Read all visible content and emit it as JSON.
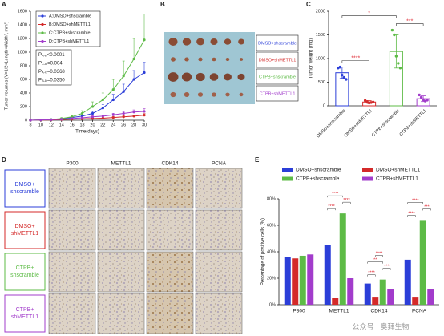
{
  "panel_labels": [
    "A",
    "B",
    "C",
    "D",
    "E"
  ],
  "chart_data": [
    {
      "type": "line",
      "ylabel": "Tumor volumes (V=1/2×Length×Width², mm³)",
      "xlabel": "Time(days)",
      "x": [
        8,
        10,
        12,
        14,
        16,
        18,
        20,
        22,
        24,
        26,
        28,
        30
      ],
      "xlim": [
        8,
        30
      ],
      "xticks": [
        8,
        10,
        12,
        14,
        16,
        18,
        20,
        22,
        24,
        26,
        28,
        30
      ],
      "ylim": [
        0,
        1600
      ],
      "yticks": [
        0,
        200,
        400,
        600,
        800,
        1000,
        1200,
        1400,
        1600
      ],
      "series": [
        {
          "name": "A:DMSO+shscramble",
          "color": "#2b3ed8",
          "values": [
            0,
            5,
            10,
            20,
            40,
            60,
            100,
            180,
            300,
            420,
            600,
            700
          ],
          "errors": [
            0,
            2,
            4,
            8,
            12,
            20,
            30,
            50,
            80,
            110,
            130,
            150
          ]
        },
        {
          "name": "B:DMSO+shMETTL1",
          "color": "#d42a2a",
          "values": [
            0,
            3,
            5,
            10,
            15,
            20,
            25,
            30,
            40,
            50,
            60,
            75
          ],
          "errors": [
            0,
            1,
            2,
            3,
            5,
            6,
            8,
            10,
            12,
            15,
            18,
            22
          ]
        },
        {
          "name": "C:CTPB+shscramble",
          "color": "#5dbb46",
          "values": [
            0,
            5,
            10,
            25,
            50,
            100,
            200,
            300,
            450,
            650,
            900,
            1180
          ],
          "errors": [
            0,
            3,
            5,
            10,
            20,
            40,
            70,
            100,
            150,
            220,
            300,
            380
          ]
        },
        {
          "name": "D:CTPB+shMETTL1",
          "color": "#a23ccb",
          "values": [
            0,
            4,
            8,
            15,
            25,
            35,
            50,
            60,
            80,
            100,
            120,
            130
          ],
          "errors": [
            0,
            2,
            3,
            5,
            8,
            10,
            14,
            18,
            22,
            28,
            32,
            40
          ]
        }
      ],
      "annotations": [
        {
          "p": "P",
          "sub": "A-B",
          "text": "<0.0001"
        },
        {
          "p": "P",
          "sub": "C-D",
          "text": "=0.004"
        },
        {
          "p": "P",
          "sub": "A-C",
          "text": "=0.0368"
        },
        {
          "p": "P",
          "sub": "B-D",
          "text": "=0.0350"
        }
      ]
    },
    {
      "type": "dotbar",
      "ylabel": "Tumor weight (mg)",
      "categories": [
        "DMSO+shscramble",
        "DMSO+shMETTL1",
        "CTPB+shscramble",
        "CTPB+shMETTL1"
      ],
      "colors": [
        "#2b3ed8",
        "#d42a2a",
        "#5dbb46",
        "#a23ccb"
      ],
      "values": [
        700,
        80,
        1150,
        150
      ],
      "errors": [
        120,
        30,
        350,
        60
      ],
      "points": [
        [
          800,
          820,
          650,
          600,
          560
        ],
        [
          110,
          90,
          60,
          70,
          80
        ],
        [
          1600,
          1500,
          1050,
          900,
          800
        ],
        [
          230,
          180,
          130,
          100,
          120
        ]
      ],
      "ylim": [
        0,
        2000
      ],
      "yticks": [
        0,
        500,
        1000,
        1500,
        2000
      ],
      "sig": [
        {
          "a": 0,
          "b": 1,
          "text": "****"
        },
        {
          "a": 2,
          "b": 3,
          "text": "***"
        },
        {
          "a": 0,
          "b": 2,
          "text": "*"
        }
      ]
    },
    {
      "type": "groupedbar",
      "ylabel": "Percentage of positive cells (%)",
      "categories": [
        "P300",
        "METTL1",
        "CDK14",
        "PCNA"
      ],
      "series": [
        {
          "name": "DMSO+shscramble",
          "color": "#2b3ed8",
          "values": [
            36,
            45,
            16,
            34
          ]
        },
        {
          "name": "DMSO+shMETTL1",
          "color": "#d42a2a",
          "values": [
            35,
            5,
            6,
            6
          ]
        },
        {
          "name": "CTPB+shscramble",
          "color": "#5dbb46",
          "values": [
            37,
            69,
            19,
            64
          ]
        },
        {
          "name": "CTPB+shMETTL1",
          "color": "#a23ccb",
          "values": [
            38,
            20,
            12,
            12
          ]
        }
      ],
      "ylim": [
        0,
        80
      ],
      "yticks": [
        {
          "value": 0,
          "label": "0%"
        },
        {
          "value": 20,
          "label": "20%"
        },
        {
          "value": 40,
          "label": "40%"
        },
        {
          "value": 60,
          "label": "60%"
        },
        {
          "value": 80,
          "label": "80%"
        }
      ],
      "sig": [
        [],
        [
          {
            "a": 0,
            "b": 1,
            "text": "****"
          },
          {
            "a": 2,
            "b": 3,
            "text": "****"
          },
          {
            "a": 0,
            "b": 2,
            "text": "****"
          }
        ],
        [
          {
            "a": 0,
            "b": 1,
            "text": "****"
          },
          {
            "a": 2,
            "b": 3,
            "text": "***"
          },
          {
            "a": 0,
            "b": 2,
            "text": "**"
          },
          {
            "a": 1,
            "b": 2,
            "text": "****"
          }
        ],
        [
          {
            "a": 0,
            "b": 1,
            "text": "****"
          },
          {
            "a": 2,
            "b": 3,
            "text": "***"
          },
          {
            "a": 0,
            "b": 2,
            "text": "****"
          }
        ]
      ]
    }
  ],
  "tumor_labels": [
    "DMSO+shscramble",
    "DMSO+shMETTL1",
    "CTPB+shscramble",
    "CTPB+shMETTL1"
  ],
  "histology": {
    "columns": [
      "P300",
      "METTL1",
      "CDK14",
      "PCNA"
    ],
    "rows": [
      [
        "DMSO+",
        "shscramble"
      ],
      [
        "DMSO+",
        "shMETTL1"
      ],
      [
        "CTPB+",
        "shscramble"
      ],
      [
        "CTPB+",
        "shMETTL1"
      ]
    ]
  },
  "watermark": "公众号 · 奥拜生物"
}
